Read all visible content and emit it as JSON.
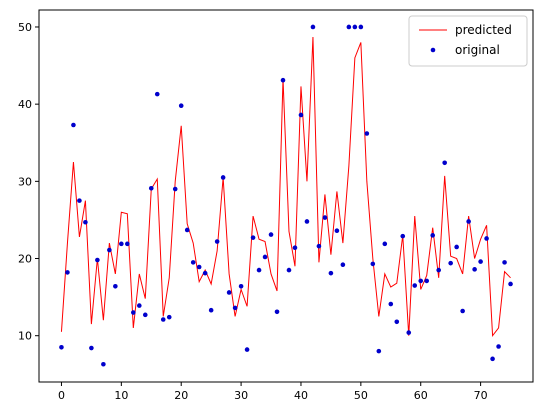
{
  "chart_data": {
    "type": "line",
    "xlim": [
      -3.75,
      78.75
    ],
    "ylim": [
      4.0,
      52.2
    ],
    "xticks": [
      0,
      10,
      20,
      30,
      40,
      50,
      60,
      70
    ],
    "yticks": [
      10,
      20,
      30,
      40,
      50
    ],
    "xtick_labels": [
      "0",
      "10",
      "20",
      "30",
      "40",
      "50",
      "60",
      "70"
    ],
    "ytick_labels": [
      "10",
      "20",
      "30",
      "40",
      "50"
    ],
    "grid": false,
    "legend": "upper right",
    "series": [
      {
        "name": "predicted",
        "style": "line",
        "color": "#ff0000",
        "x": [
          0,
          1,
          2,
          3,
          4,
          5,
          6,
          7,
          8,
          9,
          10,
          11,
          12,
          13,
          14,
          15,
          16,
          17,
          18,
          19,
          20,
          21,
          22,
          23,
          24,
          25,
          26,
          27,
          28,
          29,
          30,
          31,
          32,
          33,
          34,
          35,
          36,
          37,
          38,
          39,
          40,
          41,
          42,
          43,
          44,
          45,
          46,
          47,
          48,
          49,
          50,
          51,
          52,
          53,
          54,
          55,
          56,
          57,
          58,
          59,
          60,
          61,
          62,
          63,
          64,
          65,
          66,
          67,
          68,
          69,
          70,
          71,
          72,
          73,
          74,
          75
        ],
        "y": [
          10.5,
          22.0,
          32.5,
          22.8,
          27.5,
          11.5,
          20.0,
          12.0,
          22.0,
          18.0,
          26.0,
          25.8,
          11.0,
          18.0,
          14.8,
          29.0,
          30.3,
          12.5,
          17.5,
          30.0,
          37.2,
          24.5,
          22.0,
          17.0,
          18.5,
          16.7,
          21.0,
          30.5,
          18.0,
          12.5,
          16.0,
          13.8,
          25.5,
          22.5,
          22.2,
          18.0,
          15.8,
          43.3,
          23.5,
          19.0,
          42.3,
          30.0,
          48.7,
          19.5,
          28.3,
          20.5,
          28.7,
          22.0,
          32.0,
          46.0,
          48.0,
          30.0,
          20.0,
          12.5,
          18.0,
          16.3,
          16.8,
          23.0,
          10.0,
          25.5,
          16.0,
          17.8,
          24.0,
          17.5,
          30.7,
          20.3,
          20.0,
          18.0,
          25.5,
          20.0,
          22.5,
          24.3,
          10.0,
          11.0,
          18.3,
          17.5
        ]
      },
      {
        "name": "original",
        "style": "scatter",
        "color": "#0000cc",
        "x": [
          0,
          1,
          2,
          3,
          4,
          5,
          6,
          7,
          8,
          9,
          10,
          11,
          12,
          13,
          14,
          15,
          16,
          17,
          18,
          19,
          20,
          21,
          22,
          23,
          24,
          25,
          26,
          27,
          28,
          29,
          30,
          31,
          32,
          33,
          34,
          35,
          36,
          37,
          38,
          39,
          40,
          41,
          42,
          43,
          44,
          45,
          46,
          47,
          48,
          49,
          50,
          51,
          52,
          53,
          54,
          55,
          56,
          57,
          58,
          59,
          60,
          61,
          62,
          63,
          64,
          65,
          66,
          67,
          68,
          69,
          70,
          71,
          72,
          73,
          74,
          75
        ],
        "y": [
          8.5,
          18.2,
          37.3,
          27.5,
          24.7,
          8.4,
          19.8,
          6.3,
          21.1,
          16.4,
          21.9,
          21.9,
          13.0,
          13.9,
          12.7,
          29.1,
          41.3,
          12.1,
          12.4,
          29.0,
          39.8,
          23.7,
          19.5,
          18.9,
          18.1,
          13.3,
          22.2,
          30.5,
          15.6,
          13.6,
          16.4,
          8.2,
          22.7,
          18.5,
          20.2,
          23.1,
          13.1,
          43.1,
          18.5,
          21.4,
          38.6,
          24.8,
          50.0,
          21.6,
          25.3,
          18.1,
          23.6,
          19.2,
          50.0,
          50.0,
          50.0,
          36.2,
          19.3,
          8.0,
          21.9,
          14.1,
          11.8,
          22.9,
          10.4,
          16.5,
          17.1,
          17.1,
          23.0,
          18.5,
          32.4,
          19.4,
          21.5,
          13.2,
          24.8,
          18.6,
          19.6,
          22.6,
          7.0,
          8.6,
          19.5,
          16.7
        ]
      }
    ]
  }
}
